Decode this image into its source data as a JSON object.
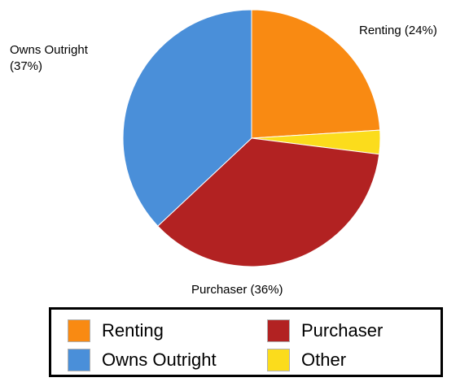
{
  "chart_data": {
    "type": "pie",
    "title": "",
    "slices": [
      {
        "name": "Renting",
        "value": 24,
        "label": "Renting (24%)",
        "color": "#f98a12"
      },
      {
        "name": "Other",
        "value": 3,
        "label": "",
        "color": "#fbdc1c"
      },
      {
        "name": "Purchaser",
        "value": 36,
        "label": "Purchaser (36%)",
        "color": "#b22222"
      },
      {
        "name": "Owns Outright",
        "value": 37,
        "label": "Owns Outright (37%)",
        "color": "#4a8fd9"
      }
    ],
    "start_angle_deg": 0,
    "direction": "clockwise",
    "legend": {
      "placement": "bottom",
      "entries": [
        {
          "label": "Renting",
          "color": "#f98a12"
        },
        {
          "label": "Purchaser",
          "color": "#b22222"
        },
        {
          "label": "Owns Outright",
          "color": "#4a8fd9"
        },
        {
          "label": "Other",
          "color": "#fbdc1c"
        }
      ]
    }
  }
}
